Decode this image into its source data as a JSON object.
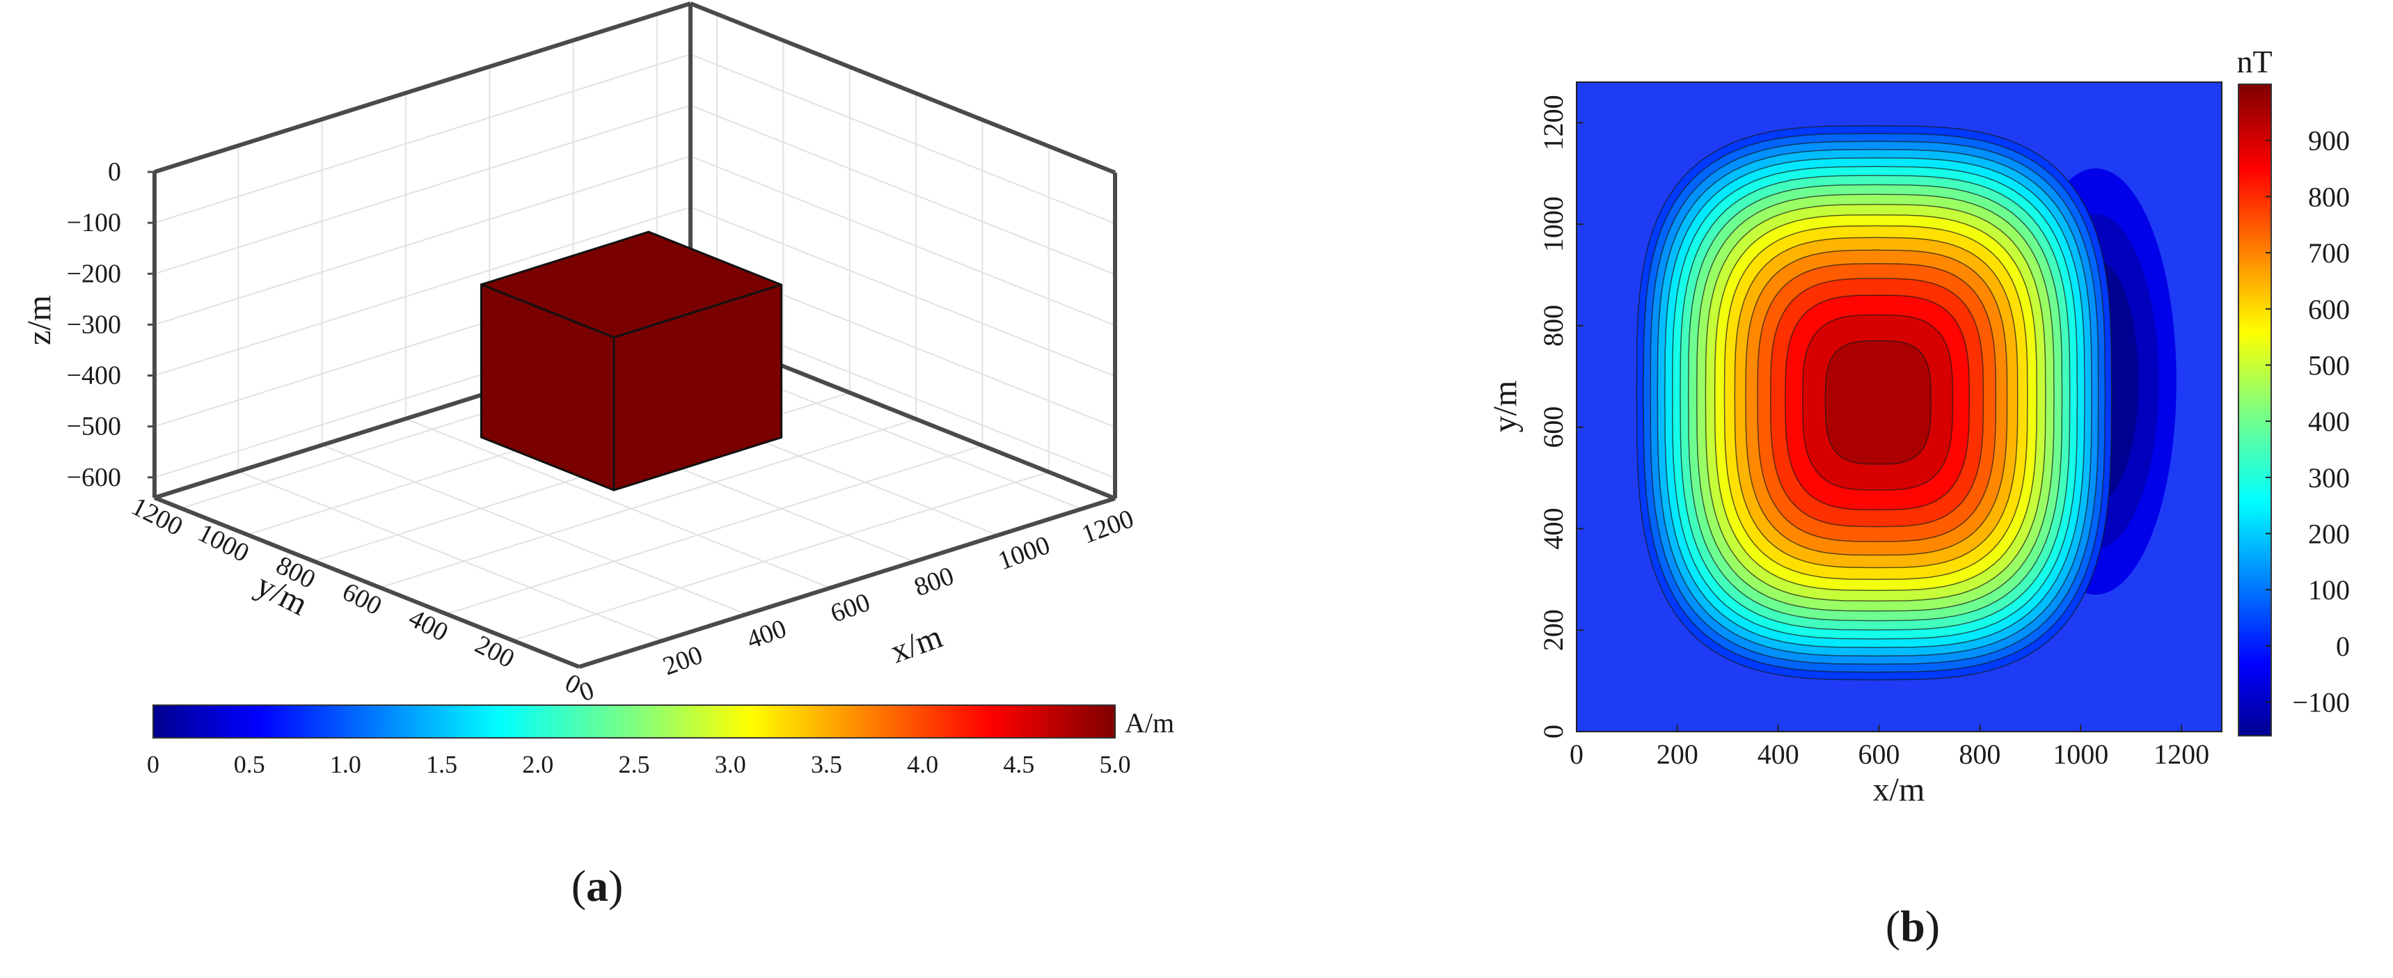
{
  "panels": [
    {
      "label_open": "(",
      "label_letter": "a",
      "label_close": ")"
    },
    {
      "label_open": "(",
      "label_letter": "b",
      "label_close": ")"
    }
  ],
  "chart_data": [
    {
      "type": "3d-box",
      "zlabel": "z/m",
      "ylabel": "y/m",
      "xlabel": "x/m",
      "xlim": [
        0,
        1280
      ],
      "ylim": [
        0,
        1280
      ],
      "zlim": [
        -640,
        0
      ],
      "x_ticks": [
        0,
        200,
        400,
        600,
        800,
        1000,
        1200
      ],
      "y_ticks": [
        0,
        200,
        400,
        600,
        800,
        1000,
        1200
      ],
      "z_ticks": [
        0,
        -100,
        -200,
        -300,
        -400,
        -500,
        -600
      ],
      "grid": true,
      "prism": {
        "x": [
          400,
          800
        ],
        "y": [
          400,
          800
        ],
        "z": [
          -500,
          -200
        ],
        "magnetization": 5.0
      },
      "colorbar": {
        "unit": "A/m",
        "min": 0,
        "max": 5.0,
        "ticks": [
          "0",
          "0.5",
          "1.0",
          "1.5",
          "2.0",
          "2.5",
          "3.0",
          "3.5",
          "4.0",
          "4.5",
          "5.0"
        ],
        "orientation": "horizontal",
        "placement": "bottom",
        "colormap": "jet"
      },
      "colors": {
        "prism": "#7a0000",
        "box_edge": "#4a4a4a",
        "grid": "#e2e2e2"
      }
    },
    {
      "type": "heatmap",
      "xlabel": "x/m",
      "ylabel": "y/m",
      "xlim": [
        0,
        1280
      ],
      "ylim": [
        0,
        1280
      ],
      "x_ticks": [
        0,
        200,
        400,
        600,
        800,
        1000,
        1200
      ],
      "y_ticks": [
        0,
        200,
        400,
        600,
        800,
        1000,
        1200
      ],
      "positive_anomaly": {
        "center": [
          600,
          650
        ],
        "peak": 990
      },
      "negative_anomaly": {
        "center": [
          1030,
          690
        ],
        "min": -150
      },
      "background": 0,
      "contour_interval": 50,
      "colorbar": {
        "unit": "nT",
        "min": -160,
        "max": 1000,
        "ticks": [
          -100,
          0,
          100,
          200,
          300,
          400,
          500,
          600,
          700,
          800,
          900
        ],
        "orientation": "vertical",
        "placement": "right",
        "colormap": "jet"
      }
    }
  ]
}
